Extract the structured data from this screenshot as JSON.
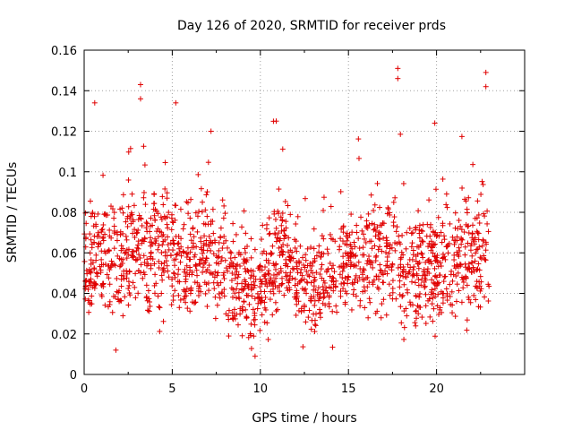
{
  "chart_data": {
    "type": "scatter",
    "title": "Day 126 of 2020, SRMTID for receiver prds",
    "xlabel": "GPS time / hours",
    "ylabel": "SRMTID / TECUs",
    "xlim": [
      0,
      25
    ],
    "ylim": [
      0,
      0.16
    ],
    "xticks": [
      0,
      5,
      10,
      15,
      20
    ],
    "xtick_labels": [
      "0",
      "5",
      "10",
      "15",
      "20"
    ],
    "yticks": [
      0,
      0.02,
      0.04,
      0.06,
      0.08,
      0.1,
      0.12,
      0.14,
      0.16
    ],
    "ytick_labels": [
      "0",
      "0.02",
      "0.04",
      "0.06",
      "0.08",
      "0.1",
      "0.12",
      "0.14",
      "0.16"
    ],
    "grid": true,
    "marker": "+",
    "color": "#e00000",
    "x_data_range": [
      0,
      23
    ],
    "series": [
      {
        "name": "SRMTID",
        "description": "dense scatter of ~2000 samples, typical values 0.03-0.08 TECU",
        "profile": [
          {
            "hour": 0,
            "median": 0.055,
            "spread": 0.018
          },
          {
            "hour": 2,
            "median": 0.058,
            "spread": 0.018
          },
          {
            "hour": 4,
            "median": 0.06,
            "spread": 0.018
          },
          {
            "hour": 6,
            "median": 0.058,
            "spread": 0.017
          },
          {
            "hour": 8,
            "median": 0.052,
            "spread": 0.017
          },
          {
            "hour": 9.8,
            "median": 0.038,
            "spread": 0.015
          },
          {
            "hour": 11,
            "median": 0.06,
            "spread": 0.017
          },
          {
            "hour": 13,
            "median": 0.042,
            "spread": 0.013
          },
          {
            "hour": 15,
            "median": 0.055,
            "spread": 0.016
          },
          {
            "hour": 17,
            "median": 0.062,
            "spread": 0.018
          },
          {
            "hour": 18.5,
            "median": 0.048,
            "spread": 0.016
          },
          {
            "hour": 20,
            "median": 0.055,
            "spread": 0.017
          },
          {
            "hour": 23,
            "median": 0.058,
            "spread": 0.017
          }
        ],
        "outliers": [
          {
            "x": 0.6,
            "y": 0.134
          },
          {
            "x": 1.8,
            "y": 0.012
          },
          {
            "x": 3.2,
            "y": 0.143
          },
          {
            "x": 3.2,
            "y": 0.136
          },
          {
            "x": 5.2,
            "y": 0.134
          },
          {
            "x": 7.2,
            "y": 0.12
          },
          {
            "x": 9.7,
            "y": 0.009
          },
          {
            "x": 10.9,
            "y": 0.125
          },
          {
            "x": 17.8,
            "y": 0.151
          },
          {
            "x": 17.8,
            "y": 0.146
          },
          {
            "x": 19.9,
            "y": 0.124
          },
          {
            "x": 22.8,
            "y": 0.149
          },
          {
            "x": 22.8,
            "y": 0.142
          }
        ]
      }
    ]
  }
}
